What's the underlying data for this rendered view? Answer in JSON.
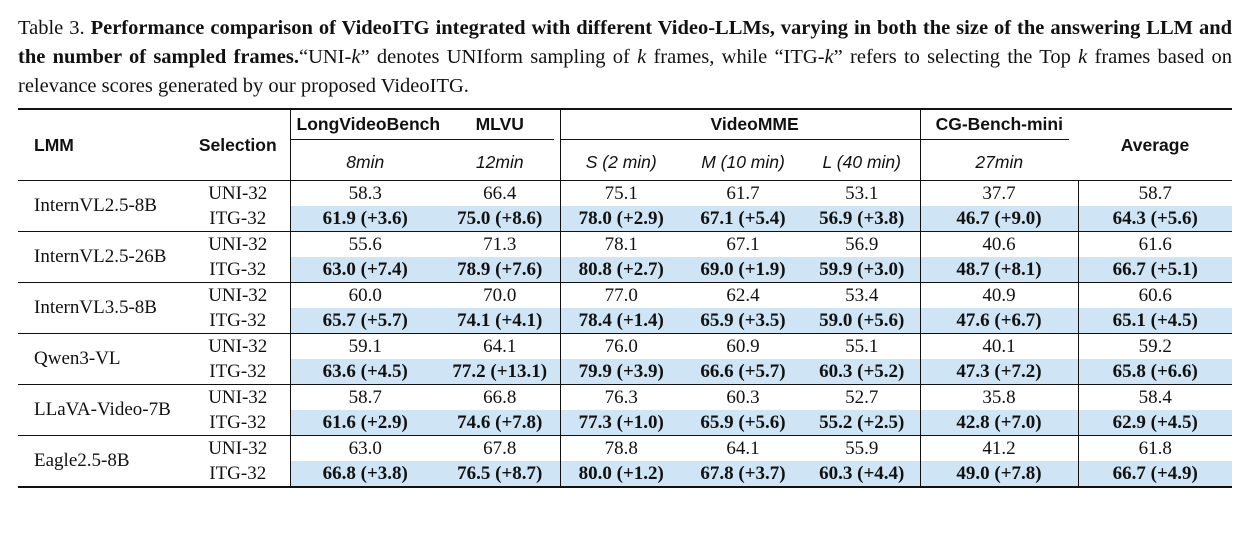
{
  "caption": {
    "label": "Table 3.",
    "bold_text": "Performance comparison of VideoITG integrated with different Video-LLMs, varying in both the size of the answering LLM and the number of sampled frames.",
    "rest_1": "“UNI-",
    "k1": "k",
    "rest_2": "” denotes UNIform sampling of ",
    "k2": "k",
    "rest_3": " frames, while “ITG-",
    "k3": "k",
    "rest_4": "” refers to selecting the Top ",
    "k4": "k",
    "rest_5": " frames based on relevance scores generated by our proposed VideoITG."
  },
  "header": {
    "lmm": "LMM",
    "selection": "Selection",
    "longvideobench": "LongVideoBench",
    "mlvu": "MLVU",
    "videomme": "VideoMME",
    "cgbench": "CG-Bench-mini",
    "average": "Average",
    "sub_lvb": "8min",
    "sub_mlvu": "12min",
    "sub_s": "S (2 min)",
    "sub_m": "M (10 min)",
    "sub_l": "L (40 min)",
    "sub_cg": "27min"
  },
  "rows": [
    {
      "model": "InternVL2.5-8B",
      "uni": {
        "sel": "UNI-32",
        "v": [
          "58.3",
          "66.4",
          "75.1",
          "61.7",
          "53.1",
          "37.7",
          "58.7"
        ]
      },
      "itg": {
        "sel": "ITG-32",
        "v": [
          "61.9 (+3.6)",
          "75.0 (+8.6)",
          "78.0 (+2.9)",
          "67.1 (+5.4)",
          "56.9 (+3.8)",
          "46.7 (+9.0)",
          "64.3 (+5.6)"
        ]
      }
    },
    {
      "model": "InternVL2.5-26B",
      "uni": {
        "sel": "UNI-32",
        "v": [
          "55.6",
          "71.3",
          "78.1",
          "67.1",
          "56.9",
          "40.6",
          "61.6"
        ]
      },
      "itg": {
        "sel": "ITG-32",
        "v": [
          "63.0 (+7.4)",
          "78.9 (+7.6)",
          "80.8 (+2.7)",
          "69.0 (+1.9)",
          "59.9 (+3.0)",
          "48.7 (+8.1)",
          "66.7 (+5.1)"
        ]
      }
    },
    {
      "model": "InternVL3.5-8B",
      "uni": {
        "sel": "UNI-32",
        "v": [
          "60.0",
          "70.0",
          "77.0",
          "62.4",
          "53.4",
          "40.9",
          "60.6"
        ]
      },
      "itg": {
        "sel": "ITG-32",
        "v": [
          "65.7 (+5.7)",
          "74.1 (+4.1)",
          "78.4 (+1.4)",
          "65.9 (+3.5)",
          "59.0 (+5.6)",
          "47.6 (+6.7)",
          "65.1 (+4.5)"
        ]
      }
    },
    {
      "model": "Qwen3-VL",
      "uni": {
        "sel": "UNI-32",
        "v": [
          "59.1",
          "64.1",
          "76.0",
          "60.9",
          "55.1",
          "40.1",
          "59.2"
        ]
      },
      "itg": {
        "sel": "ITG-32",
        "v": [
          "63.6 (+4.5)",
          "77.2 (+13.1)",
          "79.9 (+3.9)",
          "66.6 (+5.7)",
          "60.3 (+5.2)",
          "47.3 (+7.2)",
          "65.8 (+6.6)"
        ]
      }
    },
    {
      "model": "LLaVA-Video-7B",
      "uni": {
        "sel": "UNI-32",
        "v": [
          "58.7",
          "66.8",
          "76.3",
          "60.3",
          "52.7",
          "35.8",
          "58.4"
        ]
      },
      "itg": {
        "sel": "ITG-32",
        "v": [
          "61.6 (+2.9)",
          "74.6 (+7.8)",
          "77.3 (+1.0)",
          "65.9 (+5.6)",
          "55.2 (+2.5)",
          "42.8 (+7.0)",
          "62.9 (+4.5)"
        ]
      }
    },
    {
      "model": "Eagle2.5-8B",
      "uni": {
        "sel": "UNI-32",
        "v": [
          "63.0",
          "67.8",
          "78.8",
          "64.1",
          "55.9",
          "41.2",
          "61.8"
        ]
      },
      "itg": {
        "sel": "ITG-32",
        "v": [
          "66.8 (+3.8)",
          "76.5 (+8.7)",
          "80.0 (+1.2)",
          "67.8 (+3.7)",
          "60.3 (+4.4)",
          "49.0 (+7.8)",
          "66.7 (+4.9)"
        ]
      }
    }
  ],
  "colors": {
    "highlight": "#cfe5f5",
    "text": "#111111"
  }
}
